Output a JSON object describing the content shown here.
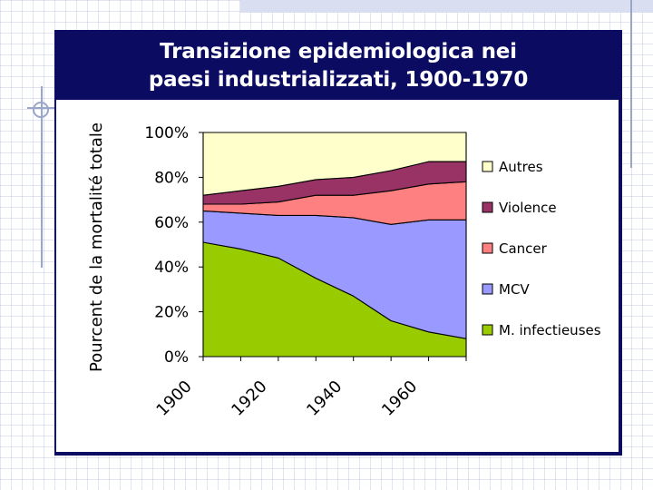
{
  "slide": {
    "title_line1": "Transizione epidemiologica nei",
    "title_line2": "paesi industrializzati, 1900-1970"
  },
  "chart_data": {
    "type": "area",
    "stacked": true,
    "title": "Transizione epidemiologica nei paesi industrializzati, 1900-1970",
    "xlabel": "",
    "ylabel": "Pourcent de la mortalité totale",
    "x": [
      1900,
      1910,
      1920,
      1930,
      1940,
      1950,
      1960,
      1970
    ],
    "xlim": [
      1900,
      1970
    ],
    "ylim": [
      0,
      100
    ],
    "x_tick_labels": [
      {
        "x": 1900,
        "label": "1900"
      },
      {
        "x": 1920,
        "label": "1920"
      },
      {
        "x": 1940,
        "label": "1940"
      },
      {
        "x": 1960,
        "label": "1960"
      }
    ],
    "y_ticks": [
      0,
      20,
      40,
      60,
      80,
      100
    ],
    "y_tick_labels": [
      "0%",
      "20%",
      "40%",
      "60%",
      "80%",
      "100%"
    ],
    "legend_position": "right",
    "series": [
      {
        "name": "M. infectieuses",
        "color": "#99cc00",
        "values": [
          51,
          48,
          44,
          35,
          27,
          16,
          11,
          8
        ]
      },
      {
        "name": "MCV",
        "color": "#9999ff",
        "values": [
          14,
          16,
          19,
          28,
          35,
          43,
          50,
          53
        ]
      },
      {
        "name": "Cancer",
        "color": "#ff8080",
        "values": [
          3,
          4,
          6,
          9,
          10,
          15,
          16,
          17
        ]
      },
      {
        "name": "Violence",
        "color": "#993366",
        "values": [
          4,
          6,
          7,
          7,
          8,
          9,
          10,
          9
        ]
      },
      {
        "name": "Autres",
        "color": "#ffffcc",
        "values": [
          28,
          26,
          24,
          21,
          20,
          17,
          13,
          13
        ]
      }
    ]
  }
}
